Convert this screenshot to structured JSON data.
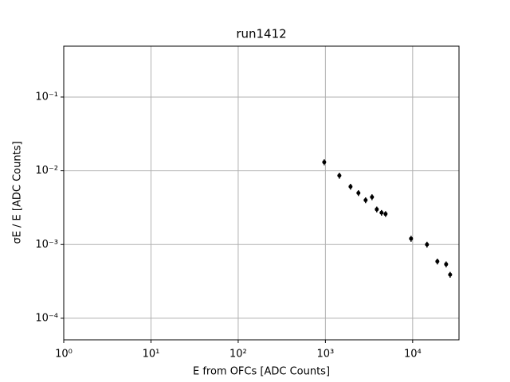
{
  "chart_data": {
    "type": "errorbar_scatter",
    "title": "run1412",
    "xlabel": "E from OFCs [ADC Counts]",
    "ylabel": "σE / E [ADC Counts]",
    "x": [
      969,
      1445,
      1940,
      2390,
      2890,
      3420,
      3880,
      4400,
      4890,
      9590,
      14600,
      19200,
      24200,
      26900
    ],
    "values": [
      0.0131,
      0.0086,
      0.0061,
      0.005,
      0.004,
      0.0044,
      0.003,
      0.0027,
      0.0026,
      0.0012,
      0.001,
      0.00059,
      0.00054,
      0.00039
    ],
    "errors": [
      0.0012,
      0.0008,
      0.00055,
      0.00045,
      0.00036,
      0.0004,
      0.00027,
      0.00024,
      0.00023,
      0.00011,
      9e-05,
      5.3e-05,
      4.9e-05,
      3.5e-05
    ],
    "color": "#000000",
    "xscale": "log",
    "yscale": "log",
    "xlim": [
      1,
      34000
    ],
    "ylim": [
      5.1e-05,
      0.49
    ],
    "xticks": [
      {
        "value": 1,
        "label": "10⁰"
      },
      {
        "value": 10,
        "label": "10¹"
      },
      {
        "value": 100,
        "label": "10²"
      },
      {
        "value": 1000,
        "label": "10³"
      },
      {
        "value": 10000,
        "label": "10⁴"
      }
    ],
    "yticks": [
      {
        "value": 0.0001,
        "label": "10⁻⁴"
      },
      {
        "value": 0.001,
        "label": "10⁻³"
      },
      {
        "value": 0.01,
        "label": "10⁻²"
      },
      {
        "value": 0.1,
        "label": "10⁻¹"
      }
    ],
    "grid": true
  }
}
